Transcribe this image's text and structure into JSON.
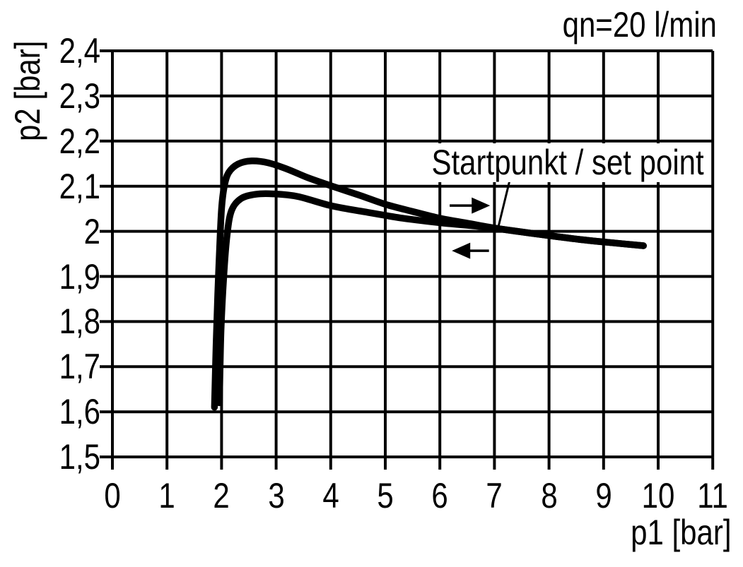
{
  "page": {
    "background_color": "#ffffff",
    "ink_color": "#000000"
  },
  "labels": {
    "flow": "qn=20 l/min",
    "set_point": "Startpunkt / set point",
    "x_axis": "p1 [bar]",
    "y_axis": "p2 [bar]"
  },
  "chart_data": {
    "type": "line",
    "title": "",
    "xlabel": "p1 [bar]",
    "ylabel": "p2 [bar]",
    "annotations": [
      "qn=20 l/min",
      "Startpunkt / set point"
    ],
    "xlim": [
      0,
      11
    ],
    "ylim": [
      1.5,
      2.4
    ],
    "x_ticks": [
      "0",
      "1",
      "2",
      "3",
      "4",
      "5",
      "6",
      "7",
      "8",
      "9",
      "10",
      "11"
    ],
    "y_ticks": [
      "2,4",
      "2,3",
      "2,2",
      "2,1",
      "2",
      "1,9",
      "1,8",
      "1,7",
      "1,6",
      "1,5"
    ],
    "grid": true,
    "legend": "none",
    "set_point": {
      "p1": 7.0,
      "p2": 2.0
    },
    "series": [
      {
        "name": "upper-hysteresis-branch",
        "points": [
          [
            1.87,
            1.61
          ],
          [
            1.9,
            1.75
          ],
          [
            1.93,
            1.86
          ],
          [
            1.96,
            1.95
          ],
          [
            2.0,
            2.05
          ],
          [
            2.05,
            2.1
          ],
          [
            2.13,
            2.13
          ],
          [
            2.3,
            2.149
          ],
          [
            2.55,
            2.156
          ],
          [
            2.85,
            2.152
          ],
          [
            3.2,
            2.138
          ],
          [
            3.6,
            2.118
          ],
          [
            4.03,
            2.1
          ],
          [
            4.55,
            2.079
          ],
          [
            5.0,
            2.06
          ],
          [
            5.5,
            2.044
          ],
          [
            6.0,
            2.029
          ],
          [
            6.5,
            2.018
          ],
          [
            7.07,
            2.006
          ],
          [
            7.78,
            1.994
          ],
          [
            8.56,
            1.982
          ],
          [
            9.21,
            1.974
          ],
          [
            9.73,
            1.968
          ]
        ]
      },
      {
        "name": "lower-hysteresis-branch",
        "points": [
          [
            1.96,
            1.62
          ],
          [
            1.99,
            1.78
          ],
          [
            2.04,
            1.9
          ],
          [
            2.1,
            1.99
          ],
          [
            2.18,
            2.045
          ],
          [
            2.35,
            2.072
          ],
          [
            2.62,
            2.082
          ],
          [
            2.95,
            2.083
          ],
          [
            3.4,
            2.077
          ],
          [
            4.03,
            2.056
          ],
          [
            4.68,
            2.042
          ],
          [
            5.32,
            2.029
          ],
          [
            6.0,
            2.019
          ],
          [
            6.62,
            2.012
          ],
          [
            7.07,
            2.006
          ],
          [
            7.78,
            1.994
          ],
          [
            8.56,
            1.982
          ],
          [
            9.21,
            1.974
          ],
          [
            9.73,
            1.968
          ]
        ]
      }
    ],
    "arrows": [
      {
        "name": "direction-increasing-p1",
        "dir": "right",
        "x_start": 6.18,
        "x_end": 6.92,
        "y": 2.057
      },
      {
        "name": "direction-decreasing-p1",
        "dir": "left",
        "x_start": 6.9,
        "x_end": 6.22,
        "y": 1.957
      }
    ],
    "leader_line": {
      "from": {
        "p1": 7.29,
        "p2": 2.118
      },
      "to": {
        "p1": 7.06,
        "p2": 2.004
      }
    }
  }
}
